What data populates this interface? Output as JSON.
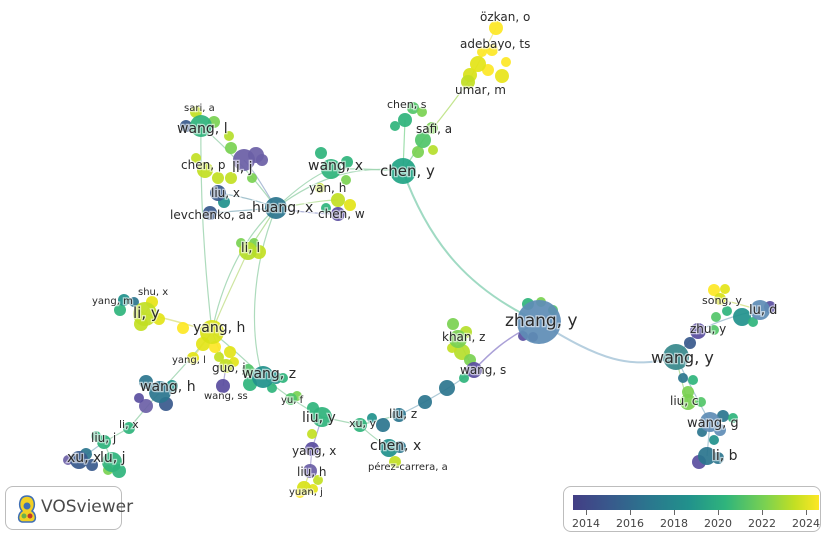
{
  "app": {
    "name": "VOSviewer"
  },
  "legend": {
    "ticks": [
      "2014",
      "2016",
      "2018",
      "2020",
      "2022",
      "2024"
    ]
  },
  "colors": {
    "y2014": "#433e85",
    "y2016": "#38598c",
    "y2018": "#2b758e",
    "y2019": "#21918c",
    "y2020": "#2fb47c",
    "y2022": "#7ad151",
    "y2023": "#c2df23",
    "y2024": "#fde725"
  },
  "nodes": [
    {
      "id": "ozkan",
      "label": "özkan, o",
      "c": "#fde725"
    },
    {
      "id": "adebayo",
      "label": "adebayo, ts",
      "c": "#e3e418"
    },
    {
      "id": "umar",
      "label": "umar, m",
      "c": "#c2df23"
    },
    {
      "id": "chens",
      "label": "chen, s",
      "c": "#2fb47c"
    },
    {
      "id": "safi",
      "label": "safi, a",
      "c": "#52c569"
    },
    {
      "id": "cheny",
      "label": "chen, y",
      "c": "#21a585"
    },
    {
      "id": "saria",
      "label": "sari, a",
      "c": "#c2df23"
    },
    {
      "id": "wangl",
      "label": "wang, l",
      "c": "#2fb47c"
    },
    {
      "id": "lij",
      "label": "li, j",
      "c": "#6b5fa6"
    },
    {
      "id": "chenp",
      "label": "chen, p",
      "c": "#c2df23"
    },
    {
      "id": "liux",
      "label": "liu, x",
      "c": "#38598c"
    },
    {
      "id": "levchenko",
      "label": "levchenko, aa",
      "c": "#38598c"
    },
    {
      "id": "huangx",
      "label": "huang, x",
      "c": "#2b758e"
    },
    {
      "id": "wangx",
      "label": "wang, x",
      "c": "#2fb47c"
    },
    {
      "id": "yanh",
      "label": "yan, h",
      "c": "#c2df23"
    },
    {
      "id": "chenw",
      "label": "chen, w",
      "c": "#5a4e9f"
    },
    {
      "id": "lil",
      "label": "li, l",
      "c": "#b5de2b"
    },
    {
      "id": "shux",
      "label": "shu, x",
      "c": "#e8e419"
    },
    {
      "id": "yangm",
      "label": "yang, m",
      "c": "#21918c"
    },
    {
      "id": "liy",
      "label": "li, y",
      "c": "#c2df23"
    },
    {
      "id": "yangh",
      "label": "yang, h",
      "c": "#d8e219"
    },
    {
      "id": "yangl",
      "label": "yang, l",
      "c": "#e3e418"
    },
    {
      "id": "guoj",
      "label": "guo, j",
      "c": "#c2df23"
    },
    {
      "id": "wangss",
      "label": "wang, ss",
      "c": "#5a4e9f"
    },
    {
      "id": "wangz",
      "label": "wang, z",
      "c": "#21918c"
    },
    {
      "id": "wangh",
      "label": "wang, h",
      "c": "#2b758e"
    },
    {
      "id": "yuf",
      "label": "yu, f",
      "c": "#52c569"
    },
    {
      "id": "lix",
      "label": "li, x",
      "c": "#2fb47c"
    },
    {
      "id": "liuj",
      "label": "liu, j",
      "c": "#2fb47c"
    },
    {
      "id": "xux",
      "label": "xu, x",
      "c": "#38598c"
    },
    {
      "id": "luj",
      "label": "lu, j",
      "c": "#2fb47c"
    },
    {
      "id": "liuy",
      "label": "liu, y",
      "c": "#2fb47c"
    },
    {
      "id": "yangx",
      "label": "yang, x",
      "c": "#5a4e9f"
    },
    {
      "id": "liuh",
      "label": "liu, h",
      "c": "#6b5fa6"
    },
    {
      "id": "yuanj",
      "label": "yuan, j",
      "c": "#d8e219"
    },
    {
      "id": "xuy",
      "label": "xu, y",
      "c": "#2fb47c"
    },
    {
      "id": "liuz",
      "label": "liu, z",
      "c": "#2b758e"
    },
    {
      "id": "chenx",
      "label": "chen, x",
      "c": "#21918c"
    },
    {
      "id": "perez",
      "label": "pérez-carrera, a",
      "c": "#c2df23"
    },
    {
      "id": "khanz",
      "label": "khan, z",
      "c": "#7ad151"
    },
    {
      "id": "wangs",
      "label": "wang, s",
      "c": "#5a4e9f"
    },
    {
      "id": "zhangy",
      "label": "zhang, y",
      "c": "#5f8db6"
    },
    {
      "id": "songy",
      "label": "song, y",
      "c": "#d8e219"
    },
    {
      "id": "lud",
      "label": "lu, d",
      "c": "#5f8db6"
    },
    {
      "id": "zhuy",
      "label": "zhu, y",
      "c": "#5a4e9f"
    },
    {
      "id": "wangy",
      "label": "wang, y",
      "c": "#38898c"
    },
    {
      "id": "liuc",
      "label": "liu, c",
      "c": "#7ad151"
    },
    {
      "id": "wangg",
      "label": "wang, g",
      "c": "#5f8db6"
    },
    {
      "id": "lib",
      "label": "li, b",
      "c": "#2b758e"
    }
  ]
}
